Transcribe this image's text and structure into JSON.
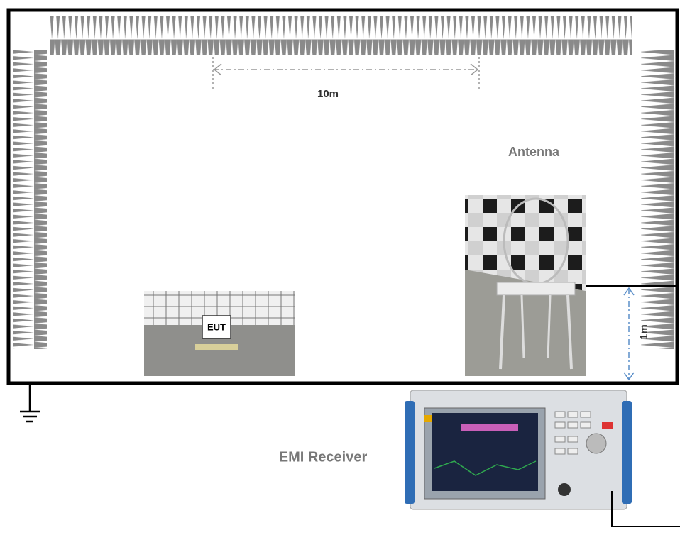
{
  "diagram": {
    "dimension_label": "10m",
    "antenna_label": "Antenna",
    "eut_label": "EUT",
    "height_label": "1m",
    "receiver_label": "EMI Receiver"
  }
}
